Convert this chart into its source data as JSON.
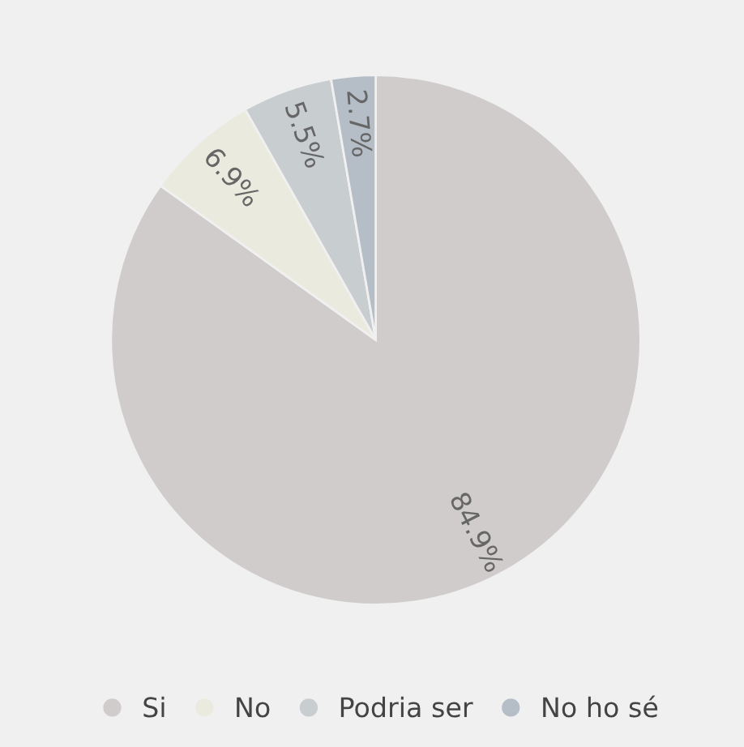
{
  "chart_data": {
    "type": "pie",
    "categories": [
      "Si",
      "No",
      "Podria ser",
      "No ho sé"
    ],
    "values": [
      84.9,
      6.9,
      5.5,
      2.7
    ],
    "value_labels": [
      "84.9%",
      "6.9%",
      "5.5%",
      "2.7%"
    ],
    "colors": [
      "#d0cccc",
      "#ebeadf",
      "#c8cdd0",
      "#b5bec7"
    ],
    "legend": "bottom"
  }
}
